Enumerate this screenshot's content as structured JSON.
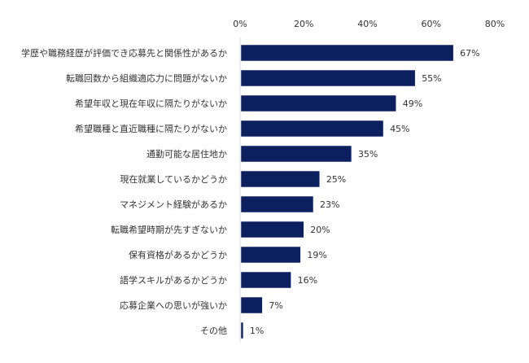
{
  "chart_data": {
    "type": "bar",
    "orientation": "horizontal",
    "title": "",
    "xlabel": "",
    "ylabel": "",
    "xlim": [
      0,
      80
    ],
    "x_ticks": [
      "0%",
      "20%",
      "40%",
      "60%",
      "80%"
    ],
    "x_tick_values": [
      0,
      20,
      40,
      60,
      80
    ],
    "tick_position": "top",
    "grid": false,
    "bar_color": "#0c2060",
    "categories": [
      "学歴や職務経歴が評価でき応募先と関係性があるか",
      "転職回数から組織適応力に問題がないか",
      "希望年収と現在年収に隔たりがないか",
      "希望職種と直近職種に隔たりがないか",
      "通勤可能な居住地か",
      "現在就業しているかどうか",
      "マネジメント経験があるか",
      "転職希望時期が先すぎないか",
      "保有資格があるかどうか",
      "語学スキルがあるかどうか",
      "応募企業への思いが強いか",
      "その他"
    ],
    "values": [
      67,
      55,
      49,
      45,
      35,
      25,
      23,
      20,
      19,
      16,
      7,
      1
    ],
    "data_labels": [
      "67%",
      "55%",
      "49%",
      "45%",
      "35%",
      "25%",
      "23%",
      "20%",
      "19%",
      "16%",
      "7%",
      "1%"
    ]
  }
}
